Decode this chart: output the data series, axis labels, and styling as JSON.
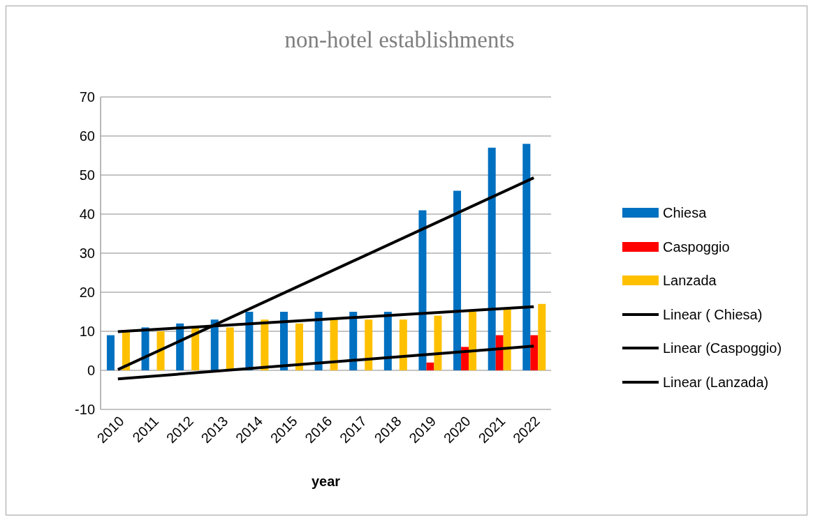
{
  "chart_data": {
    "type": "bar",
    "title": "non-hotel establishments",
    "xlabel": "year",
    "categories": [
      "2010",
      "2011",
      "2012",
      "2013",
      "2014",
      "2015",
      "2016",
      "2017",
      "2018",
      "2019",
      "2020",
      "2021",
      "2022"
    ],
    "series": [
      {
        "name": "Chiesa",
        "color": "#0070c0",
        "values": [
          9,
          11,
          12,
          13,
          15,
          15,
          15,
          15,
          15,
          41,
          46,
          57,
          58
        ]
      },
      {
        "name": "Caspoggio",
        "color": "#ff0000",
        "values": [
          0,
          0,
          0,
          0,
          0,
          0,
          0,
          0,
          0,
          2,
          6,
          9,
          9
        ]
      },
      {
        "name": "Lanzada",
        "color": "#ffc000",
        "values": [
          10,
          10,
          11,
          11,
          13,
          12,
          13,
          13,
          13,
          14,
          15,
          16,
          17
        ]
      },
      {
        "name": "Linear ( Chiesa)",
        "type": "line",
        "color": "#000000",
        "values": [
          0.2,
          null,
          null,
          null,
          null,
          null,
          null,
          null,
          null,
          null,
          null,
          null,
          49.3
        ]
      },
      {
        "name": "Linear (Caspoggio)",
        "type": "line",
        "color": "#000000",
        "values": [
          -2.2,
          null,
          null,
          null,
          null,
          null,
          null,
          null,
          null,
          null,
          null,
          null,
          6.2
        ]
      },
      {
        "name": "Linear (Lanzada)",
        "type": "line",
        "color": "#000000",
        "values": [
          9.9,
          null,
          null,
          null,
          null,
          null,
          null,
          null,
          null,
          null,
          null,
          null,
          16.3
        ]
      }
    ],
    "ylim": [
      -10,
      70
    ],
    "yticks": [
      -10,
      0,
      10,
      20,
      30,
      40,
      50,
      60,
      70
    ],
    "grid": "y",
    "legend": "right",
    "marker": "none",
    "line_style": "solid"
  }
}
